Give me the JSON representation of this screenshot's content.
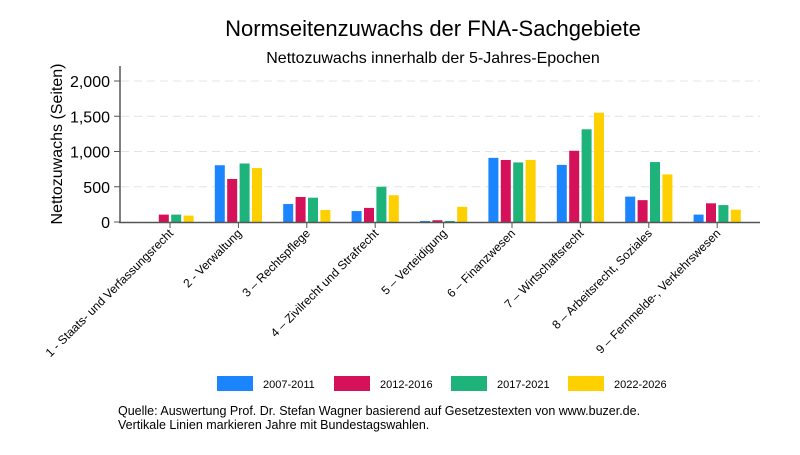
{
  "chart_data": {
    "type": "bar",
    "title": "Normseitenzuwachs der FNA-Sachgebiete",
    "subtitle": "Nettozuwachs innerhalb der 5-Jahres-Epochen",
    "xlabel": "",
    "ylabel": "Nettozuwachs (Seiten)",
    "ylim": [
      0,
      2200
    ],
    "yticks": [
      0,
      500,
      1000,
      1500,
      2000
    ],
    "ytick_labels": [
      "0",
      "500",
      "1,000",
      "1,500",
      "2,000"
    ],
    "grid": true,
    "legend_position": "bottom",
    "categories": [
      "1 - Staats- und Verfassungsrecht",
      "2 - Verwaltung",
      "3 – Rechtspflege",
      "4 – Zivilrecht und Strafrecht",
      "5 – Verteidigung",
      "6 – Finanzwesen",
      "7 – Wirtschaftsrecht",
      "8 – Arbeitsrecht, Soziales",
      "9 – Fernmelde-, Verkehrswesen"
    ],
    "series": [
      {
        "name": "2007-2011",
        "color": "#1a85ff",
        "values": [
          0,
          805,
          255,
          155,
          15,
          910,
          810,
          360,
          105
        ]
      },
      {
        "name": "2012-2016",
        "color": "#d41159",
        "values": [
          105,
          610,
          355,
          200,
          25,
          880,
          1010,
          310,
          265
        ]
      },
      {
        "name": "2017-2021",
        "color": "#1db37a",
        "values": [
          105,
          830,
          345,
          500,
          15,
          845,
          1315,
          850,
          240
        ]
      },
      {
        "name": "2022-2026",
        "color": "#ffd000",
        "values": [
          90,
          765,
          170,
          380,
          215,
          880,
          1550,
          675,
          175
        ]
      }
    ]
  },
  "note": {
    "line1": "Quelle: Auswertung Prof. Dr. Stefan Wagner basierend auf Gesetzestexten von www.buzer.de.",
    "line2": "Vertikale Linien markieren Jahre mit Bundestagswahlen."
  }
}
